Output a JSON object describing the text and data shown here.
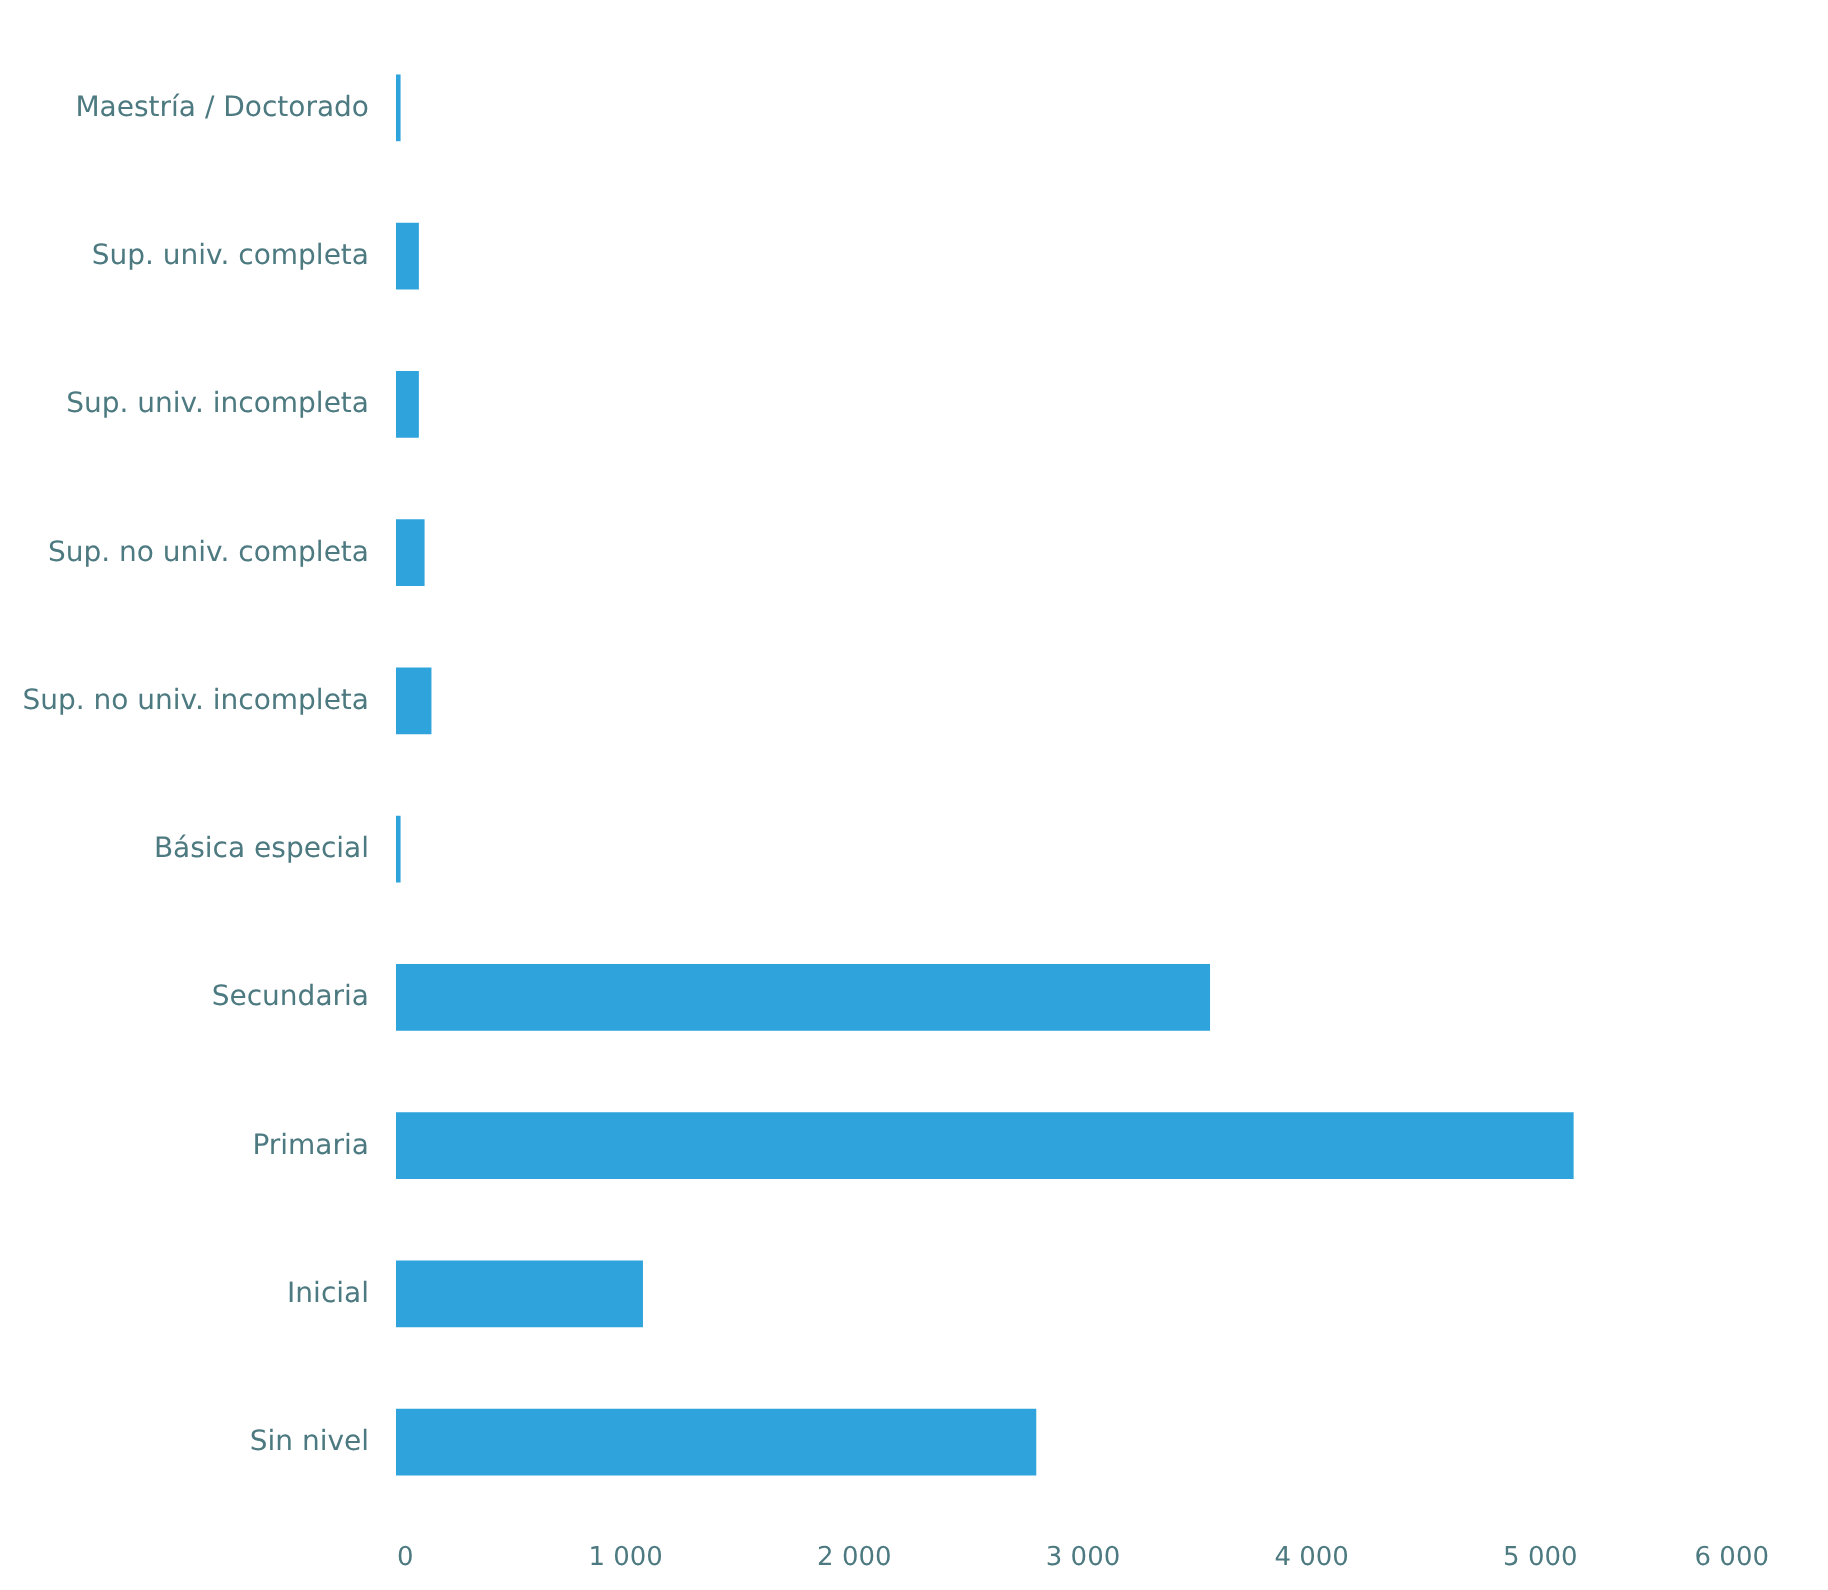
{
  "chart_data": {
    "type": "bar",
    "orientation": "horizontal",
    "categories": [
      "Maestría / Doctorado",
      "Sup. univ. completa",
      "Sup. univ. incompleta",
      "Sup. no univ. completa",
      "Sup. no univ. incompleta",
      "Básica especial",
      "Secundaria",
      "Primaria",
      "Inicial",
      "Sin nivel"
    ],
    "values": [
      20,
      100,
      100,
      125,
      155,
      20,
      3560,
      5150,
      1080,
      2800
    ],
    "color": "#2ea3dc",
    "xlim": [
      0,
      6000
    ],
    "xticks": [
      0,
      {
        "value": 1000,
        "label": "1 000"
      },
      {
        "value": 2000,
        "label": "2 000"
      },
      {
        "value": 3000,
        "label": "3 000"
      },
      {
        "value": 4000,
        "label": "4 000"
      },
      {
        "value": 5000,
        "label": "5 000"
      },
      {
        "value": 6000,
        "label": "6 000"
      }
    ],
    "grid": false,
    "legend": false
  }
}
